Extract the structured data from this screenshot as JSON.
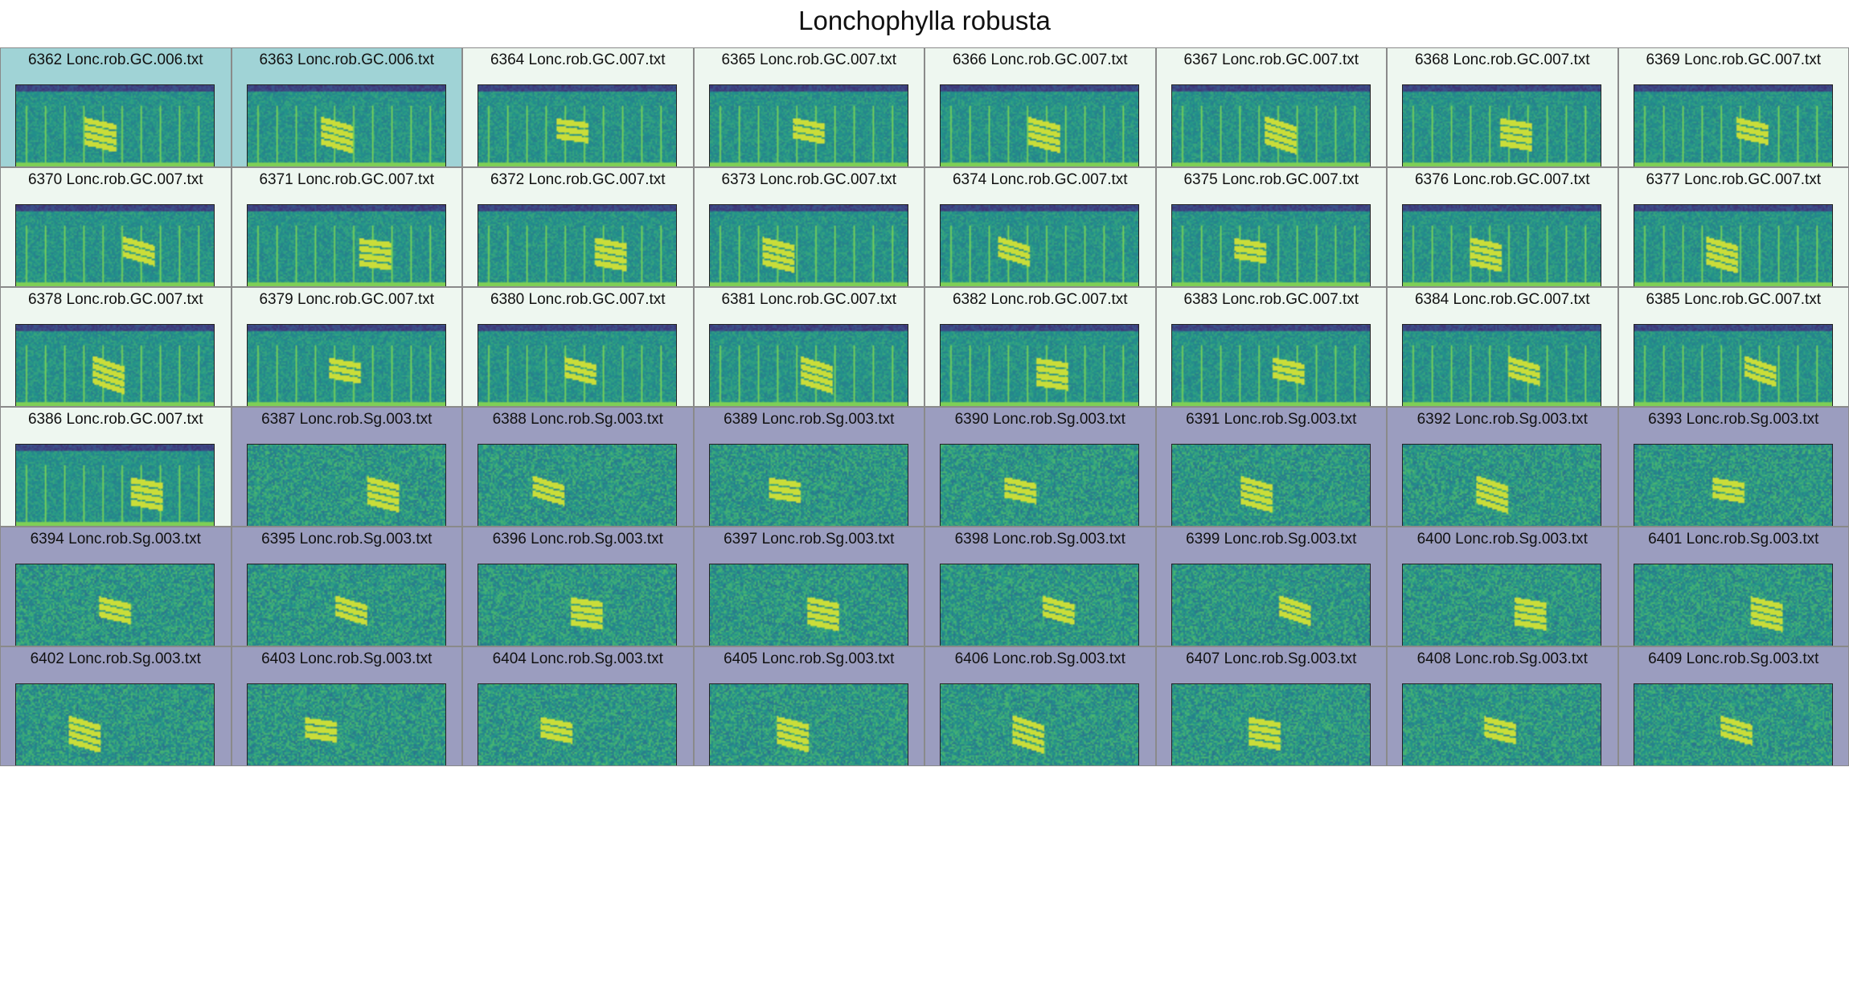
{
  "title": "Lonchophylla robusta",
  "group_colors": {
    "GC.006": "#a0d3d6",
    "GC.007": "#eef7f0",
    "Sg.003": "#9b9dbf"
  },
  "cells": [
    {
      "label": "6362 Lonc.rob.GC.006.txt",
      "group": "GC.006"
    },
    {
      "label": "6363 Lonc.rob.GC.006.txt",
      "group": "GC.006"
    },
    {
      "label": "6364 Lonc.rob.GC.007.txt",
      "group": "GC.007"
    },
    {
      "label": "6365 Lonc.rob.GC.007.txt",
      "group": "GC.007"
    },
    {
      "label": "6366 Lonc.rob.GC.007.txt",
      "group": "GC.007"
    },
    {
      "label": "6367 Lonc.rob.GC.007.txt",
      "group": "GC.007"
    },
    {
      "label": "6368 Lonc.rob.GC.007.txt",
      "group": "GC.007"
    },
    {
      "label": "6369 Lonc.rob.GC.007.txt",
      "group": "GC.007"
    },
    {
      "label": "6370 Lonc.rob.GC.007.txt",
      "group": "GC.007"
    },
    {
      "label": "6371 Lonc.rob.GC.007.txt",
      "group": "GC.007"
    },
    {
      "label": "6372 Lonc.rob.GC.007.txt",
      "group": "GC.007"
    },
    {
      "label": "6373 Lonc.rob.GC.007.txt",
      "group": "GC.007"
    },
    {
      "label": "6374 Lonc.rob.GC.007.txt",
      "group": "GC.007"
    },
    {
      "label": "6375 Lonc.rob.GC.007.txt",
      "group": "GC.007"
    },
    {
      "label": "6376 Lonc.rob.GC.007.txt",
      "group": "GC.007"
    },
    {
      "label": "6377 Lonc.rob.GC.007.txt",
      "group": "GC.007"
    },
    {
      "label": "6378 Lonc.rob.GC.007.txt",
      "group": "GC.007"
    },
    {
      "label": "6379 Lonc.rob.GC.007.txt",
      "group": "GC.007"
    },
    {
      "label": "6380 Lonc.rob.GC.007.txt",
      "group": "GC.007"
    },
    {
      "label": "6381 Lonc.rob.GC.007.txt",
      "group": "GC.007"
    },
    {
      "label": "6382 Lonc.rob.GC.007.txt",
      "group": "GC.007"
    },
    {
      "label": "6383 Lonc.rob.GC.007.txt",
      "group": "GC.007"
    },
    {
      "label": "6384 Lonc.rob.GC.007.txt",
      "group": "GC.007"
    },
    {
      "label": "6385 Lonc.rob.GC.007.txt",
      "group": "GC.007"
    },
    {
      "label": "6386 Lonc.rob.GC.007.txt",
      "group": "GC.007"
    },
    {
      "label": "6387 Lonc.rob.Sg.003.txt",
      "group": "Sg.003"
    },
    {
      "label": "6388 Lonc.rob.Sg.003.txt",
      "group": "Sg.003"
    },
    {
      "label": "6389 Lonc.rob.Sg.003.txt",
      "group": "Sg.003"
    },
    {
      "label": "6390 Lonc.rob.Sg.003.txt",
      "group": "Sg.003"
    },
    {
      "label": "6391 Lonc.rob.Sg.003.txt",
      "group": "Sg.003"
    },
    {
      "label": "6392 Lonc.rob.Sg.003.txt",
      "group": "Sg.003"
    },
    {
      "label": "6393 Lonc.rob.Sg.003.txt",
      "group": "Sg.003"
    },
    {
      "label": "6394 Lonc.rob.Sg.003.txt",
      "group": "Sg.003"
    },
    {
      "label": "6395 Lonc.rob.Sg.003.txt",
      "group": "Sg.003"
    },
    {
      "label": "6396 Lonc.rob.Sg.003.txt",
      "group": "Sg.003"
    },
    {
      "label": "6397 Lonc.rob.Sg.003.txt",
      "group": "Sg.003"
    },
    {
      "label": "6398 Lonc.rob.Sg.003.txt",
      "group": "Sg.003"
    },
    {
      "label": "6399 Lonc.rob.Sg.003.txt",
      "group": "Sg.003"
    },
    {
      "label": "6400 Lonc.rob.Sg.003.txt",
      "group": "Sg.003"
    },
    {
      "label": "6401 Lonc.rob.Sg.003.txt",
      "group": "Sg.003"
    },
    {
      "label": "6402 Lonc.rob.Sg.003.txt",
      "group": "Sg.003"
    },
    {
      "label": "6403 Lonc.rob.Sg.003.txt",
      "group": "Sg.003"
    },
    {
      "label": "6404 Lonc.rob.Sg.003.txt",
      "group": "Sg.003"
    },
    {
      "label": "6405 Lonc.rob.Sg.003.txt",
      "group": "Sg.003"
    },
    {
      "label": "6406 Lonc.rob.Sg.003.txt",
      "group": "Sg.003"
    },
    {
      "label": "6407 Lonc.rob.Sg.003.txt",
      "group": "Sg.003"
    },
    {
      "label": "6408 Lonc.rob.Sg.003.txt",
      "group": "Sg.003"
    },
    {
      "label": "6409 Lonc.rob.Sg.003.txt",
      "group": "Sg.003"
    }
  ]
}
